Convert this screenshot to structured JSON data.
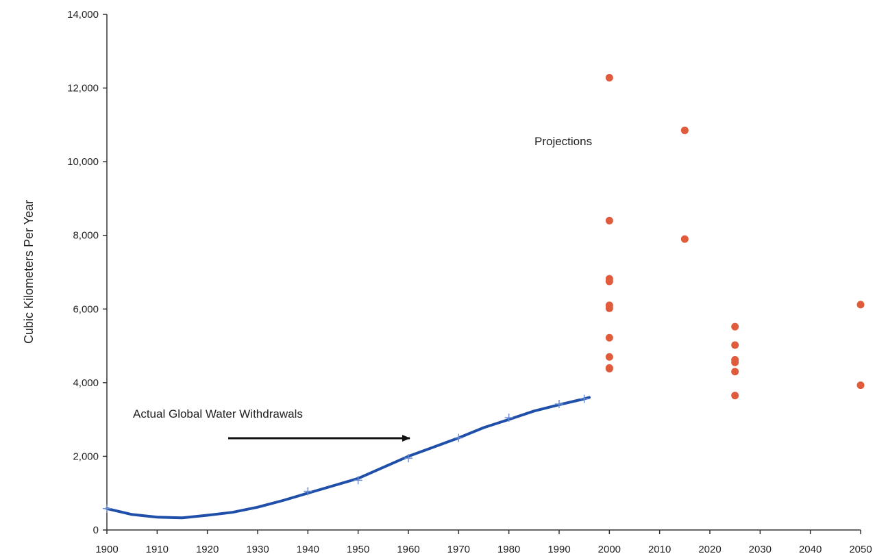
{
  "chart_data": {
    "type": "line",
    "title": "",
    "xlabel": "",
    "ylabel": "Cubic Kilometers Per Year",
    "xlim": [
      1900,
      2050
    ],
    "ylim": [
      0,
      14000
    ],
    "x_ticks": [
      "1900",
      "1910",
      "1920",
      "1930",
      "1940",
      "1950",
      "1960",
      "1970",
      "1980",
      "1990",
      "2000",
      "2010",
      "2020",
      "2030",
      "2040",
      "2050"
    ],
    "y_ticks": [
      "0",
      "2,000",
      "4,000",
      "6,000",
      "8,000",
      "10,000",
      "12,000",
      "14,000"
    ],
    "grid": false,
    "legend": "none",
    "colors": {
      "actual": "#1f4fa8",
      "actual_markers": "#6c8fd8",
      "projections": "#e05a3c",
      "axis": "#333333",
      "arrow": "#111111"
    },
    "series": [
      {
        "role": "actual",
        "x": [
          1900,
          1905,
          1910,
          1915,
          1920,
          1925,
          1930,
          1935,
          1940,
          1945,
          1950,
          1955,
          1960,
          1965,
          1970,
          1975,
          1980,
          1985,
          1990,
          1995,
          1996
        ],
        "y": [
          580,
          420,
          350,
          330,
          400,
          480,
          620,
          800,
          1000,
          1200,
          1400,
          1700,
          2000,
          2250,
          2500,
          2780,
          3000,
          3230,
          3400,
          3560,
          3600
        ],
        "marker_x": [
          1900,
          1940,
          1950,
          1960,
          1970,
          1980,
          1990,
          1995
        ],
        "marker_y": [
          580,
          1050,
          1350,
          1950,
          2500,
          3050,
          3420,
          3560
        ]
      },
      {
        "role": "projections",
        "type": "scatter",
        "x": [
          2000,
          2000,
          2000,
          2000,
          2000,
          2000,
          2000,
          2000,
          2000,
          2000,
          2015,
          2015,
          2025,
          2025,
          2025,
          2025,
          2025,
          2025,
          2050,
          2050
        ],
        "y": [
          12280,
          8400,
          6820,
          6750,
          6100,
          6020,
          5220,
          4700,
          4400,
          4380,
          10850,
          7900,
          5520,
          5020,
          4620,
          4550,
          4300,
          3650,
          6120,
          3930
        ]
      }
    ],
    "annotations": {
      "projections": "Projections",
      "actual": "Actual Global Water Withdrawals"
    }
  }
}
